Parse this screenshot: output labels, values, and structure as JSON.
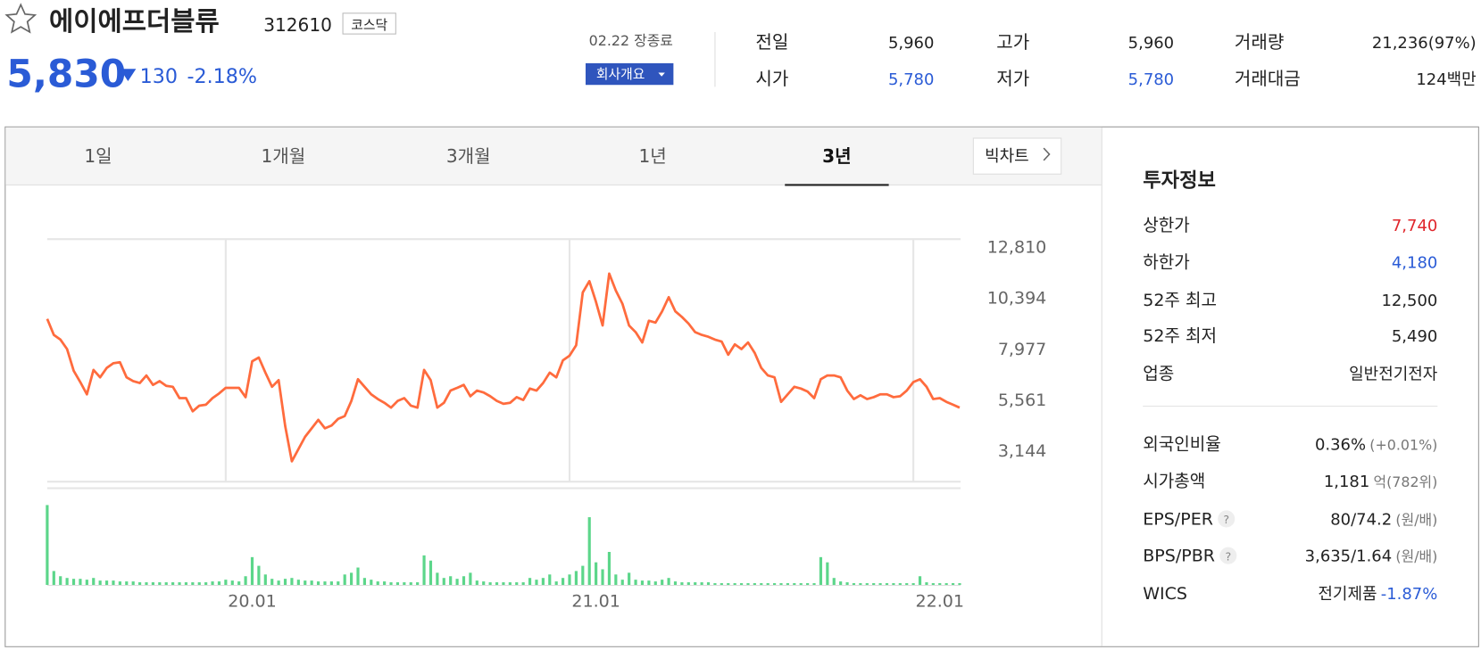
{
  "header": {
    "name": "에이에프더블류",
    "code": "312610",
    "market": "코스닥"
  },
  "quote": {
    "price": "5,830",
    "change": "130",
    "change_rate": "-2.18%",
    "date_status": "02.22 장종료",
    "company_button": "회사개요"
  },
  "summary": [
    {
      "label": "전일",
      "value": "5,960"
    },
    {
      "label": "고가",
      "value": "5,960"
    },
    {
      "label": "거래량",
      "value": "21,236(97%)"
    },
    {
      "label": "시가",
      "value": "5,780",
      "color": "#2a5bd6"
    },
    {
      "label": "저가",
      "value": "5,780",
      "color": "#2a5bd6"
    },
    {
      "label": "거래대금",
      "value": "124백만"
    }
  ],
  "tabs": [
    "1일",
    "1개월",
    "3개월",
    "1년",
    "3년"
  ],
  "big_chart": "빅차트",
  "chart_data": [
    {
      "type": "line",
      "color": "#ff6b3d",
      "values": [
        9410,
        8650,
        8425,
        7977,
        6950,
        6410,
        5830,
        6990,
        6635,
        7080,
        7305,
        7350,
        6635,
        6455,
        6365,
        6725,
        6275,
        6455,
        6230,
        6185,
        5650,
        5650,
        5025,
        5290,
        5335,
        5650,
        5875,
        6140,
        6140,
        6140,
        5695,
        7395,
        7575,
        6860,
        6185,
        6500,
        4310,
        2650,
        3235,
        3815,
        4220,
        4620,
        4220,
        4350,
        4665,
        4800,
        5515,
        6545,
        6185,
        5830,
        5605,
        5425,
        5200,
        5515,
        5650,
        5290,
        5200,
        6990,
        6500,
        5200,
        5425,
        6010,
        6140,
        6275,
        5740,
        6010,
        5920,
        5740,
        5515,
        5380,
        5425,
        5695,
        5560,
        6100,
        6010,
        6365,
        6860,
        6635,
        7440,
        7665,
        8155,
        10660,
        11200,
        10215,
        9095,
        11555,
        10750,
        10125,
        9095,
        8780,
        8290,
        9320,
        9230,
        9765,
        10440,
        9765,
        9500,
        9185,
        8780,
        8650,
        8560,
        8425,
        8335,
        7710,
        8200,
        7975,
        8290,
        7800,
        7080,
        6725,
        6635,
        5470,
        5830,
        6185,
        6100,
        5965,
        5650,
        6545,
        6725,
        6725,
        6635,
        6010,
        5605,
        5785,
        5605,
        5695,
        5830,
        5830,
        5695,
        5740,
        6010,
        6410,
        6545,
        6185,
        5605,
        5650,
        5470,
        5335,
        5200
      ],
      "xlim": [
        0,
        138
      ],
      "xticks": [
        {
          "value": 27,
          "label": "20.01"
        },
        {
          "value": 79,
          "label": "21.01"
        },
        {
          "value": 131,
          "label": "22.01"
        }
      ],
      "ylim": [
        1712,
        13213
      ],
      "yticks": [
        {
          "value": 12810,
          "label": "12,810"
        },
        {
          "value": 10394,
          "label": "10,394"
        },
        {
          "value": 7977,
          "label": "7,977"
        },
        {
          "value": 5561,
          "label": "5,561"
        },
        {
          "value": 3144,
          "label": "3,144"
        }
      ]
    },
    {
      "type": "bar",
      "color": "#5cd68a",
      "xlim": [
        0,
        138
      ],
      "ylim": [
        0,
        100
      ],
      "values": [
        92,
        16,
        10,
        8,
        7,
        7,
        6,
        8,
        5,
        5,
        5,
        4,
        4,
        4,
        3,
        3,
        3,
        3,
        3,
        3,
        3,
        3,
        3,
        3,
        3,
        4,
        4,
        6,
        5,
        4,
        10,
        32,
        22,
        12,
        7,
        5,
        7,
        8,
        6,
        5,
        5,
        4,
        4,
        4,
        4,
        12,
        14,
        20,
        8,
        6,
        4,
        4,
        3,
        3,
        3,
        3,
        3,
        34,
        28,
        14,
        8,
        10,
        7,
        10,
        14,
        5,
        4,
        3,
        3,
        3,
        3,
        3,
        3,
        8,
        6,
        8,
        12,
        4,
        8,
        12,
        16,
        22,
        78,
        26,
        18,
        38,
        12,
        6,
        14,
        6,
        5,
        5,
        4,
        6,
        8,
        4,
        3,
        3,
        3,
        3,
        3,
        2,
        2,
        2,
        2,
        2,
        2,
        2,
        2,
        2,
        2,
        2,
        2,
        2,
        2,
        2,
        2,
        32,
        26,
        8,
        4,
        3,
        2,
        2,
        2,
        2,
        2,
        2,
        2,
        2,
        2,
        2,
        10,
        3,
        2,
        2,
        2,
        2,
        2
      ]
    }
  ],
  "invest_info": {
    "title": "투자정보",
    "rows": [
      {
        "label": "상한가",
        "value": "7,740",
        "color": "#e0252b"
      },
      {
        "label": "하한가",
        "value": "4,180",
        "color": "#2a5bd6"
      },
      {
        "label": "52주 최고",
        "value": "12,500"
      },
      {
        "label": "52주 최저",
        "value": "5,490"
      },
      {
        "label": "업종",
        "value": "일반전기전자"
      },
      {
        "label": "외국인비율",
        "value": "0.36%",
        "sub": "(+0.01%)"
      },
      {
        "label": "시가총액",
        "value": "1,181",
        "sub": "억(782위)"
      },
      {
        "label": "EPS/PER",
        "value": "80/74.2",
        "sub": "(원/배)",
        "help": "?"
      },
      {
        "label": "BPS/PBR",
        "value": "3,635/1.64",
        "sub": "(원/배)",
        "help": "?"
      },
      {
        "label": "WICS",
        "value": "전기제품",
        "sub": "-1.87%",
        "sub_color": "#2a5bd6"
      }
    ]
  }
}
